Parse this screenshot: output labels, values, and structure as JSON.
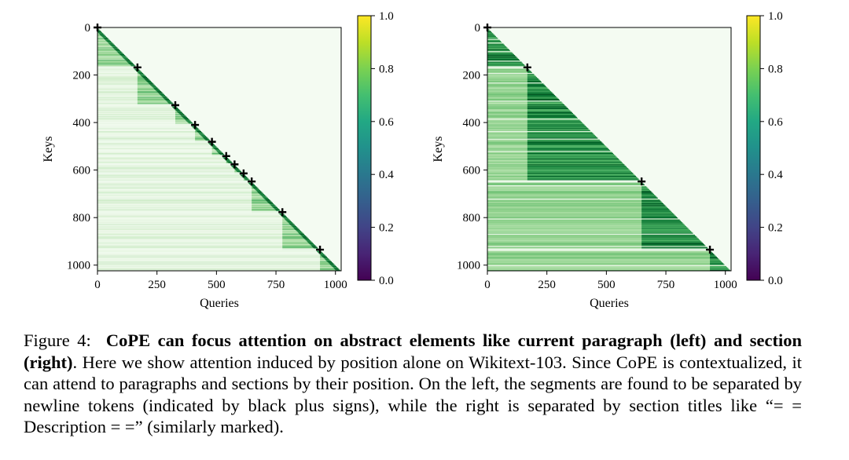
{
  "chart_data": [
    {
      "type": "heatmap",
      "panel": "left",
      "title": "",
      "xlabel": "Queries",
      "ylabel": "Keys",
      "xlim": [
        0,
        1024
      ],
      "ylim": [
        0,
        1024
      ],
      "x_ticks": [
        "0",
        "250",
        "500",
        "750",
        "1000"
      ],
      "x_tick_values": [
        0,
        250,
        500,
        750,
        1000
      ],
      "y_ticks": [
        "0",
        "200",
        "400",
        "600",
        "800",
        "1000"
      ],
      "y_tick_values": [
        0,
        200,
        400,
        600,
        800,
        1000
      ],
      "colormap": "Greens",
      "separator_markers": [
        0,
        168,
        327,
        410,
        481,
        541,
        576,
        614,
        648,
        777,
        935
      ],
      "description_of_values": "lower-triangular causal attention; strongest near diagonal, fading toward earlier keys"
    },
    {
      "type": "heatmap",
      "panel": "right",
      "title": "",
      "xlabel": "Queries",
      "ylabel": "Keys",
      "xlim": [
        0,
        1024
      ],
      "ylim": [
        0,
        1024
      ],
      "x_ticks": [
        "0",
        "250",
        "500",
        "750",
        "1000"
      ],
      "x_tick_values": [
        0,
        250,
        500,
        750,
        1000
      ],
      "y_ticks": [
        "0",
        "200",
        "400",
        "600",
        "800",
        "1000"
      ],
      "y_tick_values": [
        0,
        200,
        400,
        600,
        800,
        1000
      ],
      "colormap": "Greens",
      "separator_markers": [
        0,
        168,
        648,
        935
      ],
      "description_of_values": "lower-triangular attention constant within each section block"
    }
  ],
  "colorbar": {
    "ticks": [
      "0.0",
      "0.2",
      "0.4",
      "0.6",
      "0.8",
      "1.0"
    ],
    "tick_values": [
      0.0,
      0.2,
      0.4,
      0.6,
      0.8,
      1.0
    ],
    "colormap": "viridis"
  },
  "caption": {
    "prefix": "Figure 4:",
    "bold": "CoPE can focus attention on abstract elements like current paragraph (left) and section (right)",
    "rest": ". Here we show attention induced by position alone on Wikitext-103. Since CoPE is contextualized, it can attend to paragraphs and sections by their position. On the left, the segments are found to be separated by newline tokens (indicated by black plus signs), while the right is separated by section titles like “= = Description = =” (similarly marked)."
  }
}
